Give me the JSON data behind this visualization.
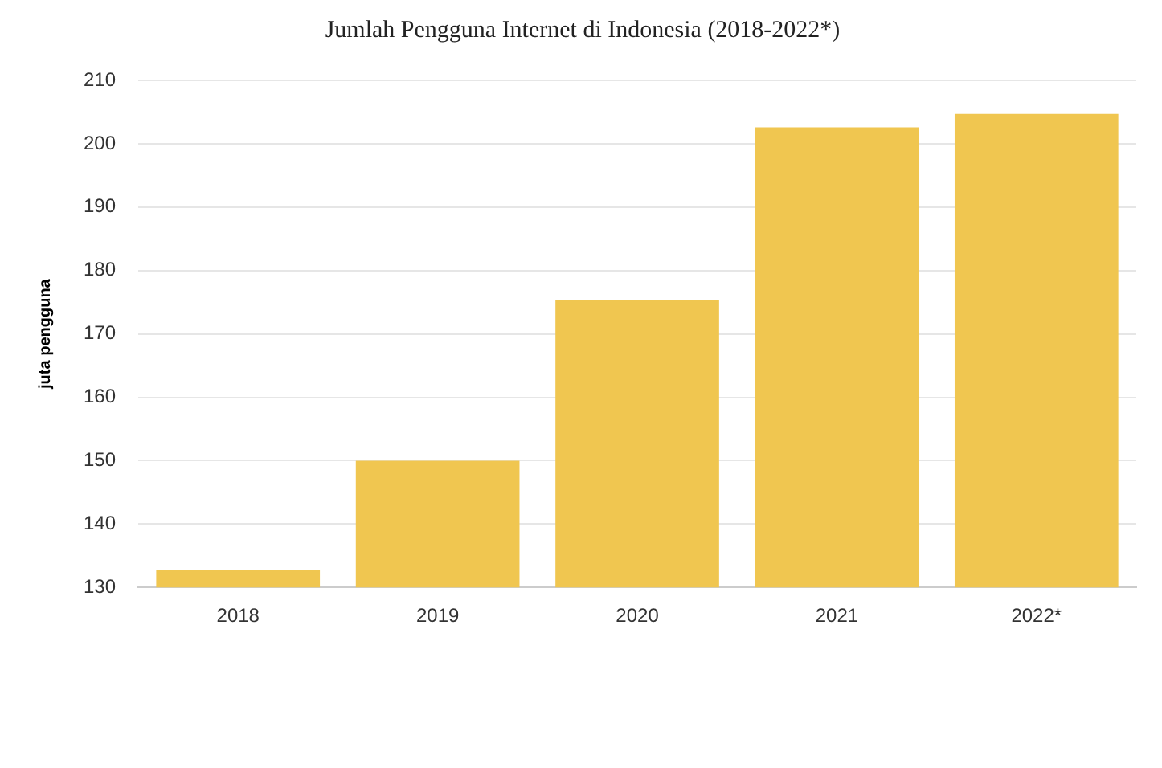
{
  "chart_data": {
    "type": "bar",
    "title": "Jumlah Pengguna Internet di Indonesia (2018-2022*)",
    "ylabel": "juta pengguna",
    "categories": [
      "2018",
      "2019",
      "2020",
      "2021",
      "2022*"
    ],
    "values": [
      132.7,
      150,
      175.4,
      202.6,
      204.7
    ],
    "color": "#f0c650",
    "ylim": [
      130,
      210
    ],
    "yticks": [
      130,
      140,
      150,
      160,
      170,
      180,
      190,
      200,
      210
    ],
    "grid": "y",
    "legend": false
  }
}
